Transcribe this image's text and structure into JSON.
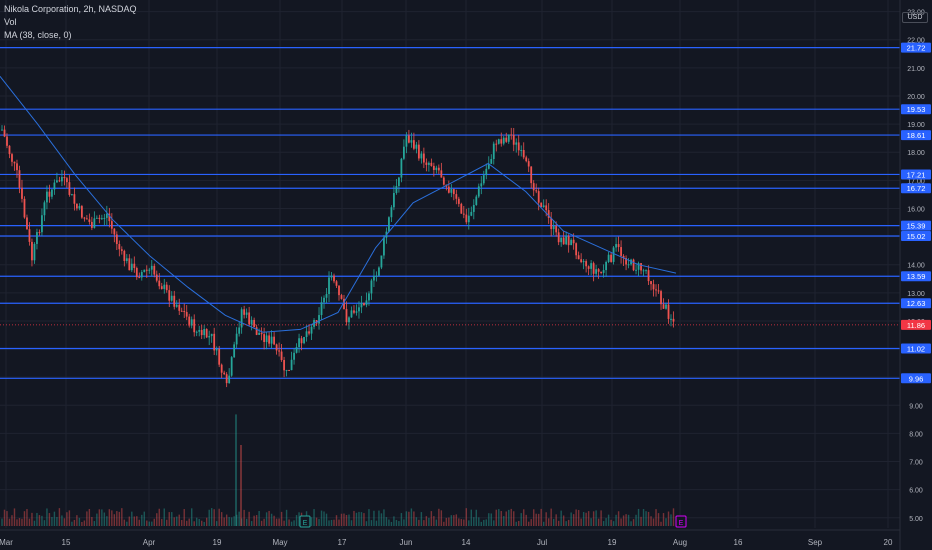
{
  "legend": {
    "symbol": "Nikola Corporation, 2h, NASDAQ",
    "vol": "Vol",
    "ma": "MA (38, close, 0)"
  },
  "axis": {
    "currency_label": "USD"
  },
  "colors": {
    "background": "#131722",
    "grid": "#1f2330",
    "up": "#26a69a",
    "down": "#ef5350",
    "ma": "#2962ff",
    "level": "#2962ff",
    "text": "#b2b5be",
    "current": "#f23645"
  },
  "chart_data": {
    "type": "candlestick",
    "y_range": [
      4.85,
      23.2
    ],
    "y_ticks": [
      5,
      6,
      7,
      8,
      9,
      10,
      11,
      12,
      13,
      14,
      15,
      16,
      17,
      18,
      19,
      20,
      21,
      22,
      23
    ],
    "y_tick_labels": [
      "5.00",
      "6.00",
      "7.00",
      "8.00",
      "9.00",
      "10.00",
      "11.00",
      "12.00",
      "13.00",
      "14.00",
      "15.00",
      "16.00",
      "17.00",
      "18.00",
      "19.00",
      "20.00",
      "21.00",
      "22.00",
      "23.00"
    ],
    "x_labels": [
      "Mar",
      "15",
      "Apr",
      "19",
      "May",
      "17",
      "Jun",
      "14",
      "Jul",
      "19",
      "Aug",
      "16",
      "Sep",
      "20"
    ],
    "levels": [
      21.72,
      19.53,
      18.61,
      17.21,
      16.72,
      15.39,
      15.02,
      13.59,
      12.63,
      11.02,
      9.96
    ],
    "level_labels": [
      "21.72",
      "19.53",
      "18.61",
      "17.21",
      "16.72",
      "15.39",
      "15.02",
      "13.59",
      "12.63",
      "11.02",
      "9.96"
    ],
    "current_price": 11.86,
    "current_price_label": "11.86",
    "event_markers": [
      {
        "label": "E",
        "x": "May"
      },
      {
        "label": "E",
        "x": "Aug"
      }
    ],
    "price_path": [
      [
        "Mar",
        18.8
      ],
      [
        "Mar",
        17.2
      ],
      [
        "Mar",
        14.2
      ],
      [
        "Mar",
        16.5
      ],
      [
        "15",
        17.1
      ],
      [
        "15",
        16.0
      ],
      [
        "15",
        15.4
      ],
      [
        "15",
        15.8
      ],
      [
        "15",
        14.3
      ],
      [
        "15",
        13.7
      ],
      [
        "15",
        13.8
      ],
      [
        "Apr",
        13.0
      ],
      [
        "Apr",
        12.4
      ],
      [
        "Apr",
        11.6
      ],
      [
        "Apr",
        11.4
      ],
      [
        "19",
        9.6
      ],
      [
        "19",
        12.4
      ],
      [
        "19",
        11.6
      ],
      [
        "May",
        11.3
      ],
      [
        "May",
        10.1
      ],
      [
        "May",
        11.4
      ],
      [
        "May",
        12.1
      ],
      [
        "17",
        13.6
      ],
      [
        "17",
        12.1
      ],
      [
        "17",
        12.6
      ],
      [
        "17",
        13.6
      ],
      [
        "Jun",
        16.0
      ],
      [
        "Jun",
        18.6
      ],
      [
        "Jun",
        17.8
      ],
      [
        "Jun",
        17.5
      ],
      [
        "14",
        16.6
      ],
      [
        "14",
        15.5
      ],
      [
        "14",
        16.9
      ],
      [
        "14",
        18.4
      ],
      [
        "14",
        18.6
      ],
      [
        "Jul",
        17.5
      ],
      [
        "Jul",
        16.2
      ],
      [
        "Jul",
        15.0
      ],
      [
        "Jul",
        14.8
      ],
      [
        "Jul",
        14.0
      ],
      [
        "19",
        13.7
      ],
      [
        "19",
        14.6
      ],
      [
        "19",
        14.0
      ],
      [
        "19",
        13.8
      ],
      [
        "19",
        12.7
      ],
      [
        "Aug",
        11.86
      ]
    ],
    "ma_path": [
      [
        "Mar",
        20.7
      ],
      [
        "Mar",
        19.0
      ],
      [
        "15",
        17.2
      ],
      [
        "15",
        15.6
      ],
      [
        "Apr",
        14.3
      ],
      [
        "Apr",
        13.2
      ],
      [
        "19",
        12.2
      ],
      [
        "May",
        11.6
      ],
      [
        "17",
        11.7
      ],
      [
        "17",
        12.3
      ],
      [
        "Jun",
        14.6
      ],
      [
        "Jun",
        16.2
      ],
      [
        "14",
        16.9
      ],
      [
        "Jul",
        17.6
      ],
      [
        "Jul",
        16.6
      ],
      [
        "19",
        15.2
      ],
      [
        "19",
        14.6
      ],
      [
        "19",
        14.0
      ],
      [
        "Aug",
        13.7
      ]
    ],
    "volume_range": [
      0,
      1
    ],
    "volume_spikes": [
      {
        "x": "19",
        "value": 0.62
      },
      {
        "x": "19",
        "value": 0.45
      }
    ]
  }
}
